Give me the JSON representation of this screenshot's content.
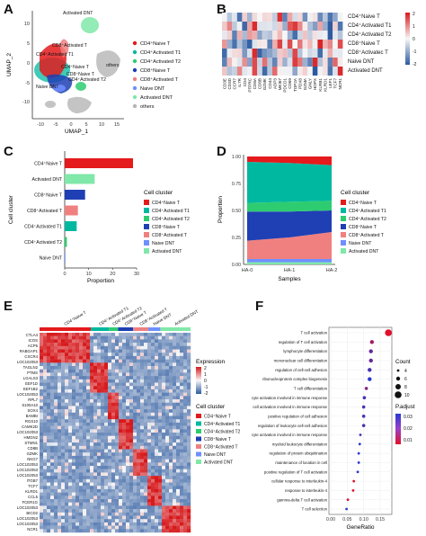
{
  "panel_labels": {
    "A": "A",
    "B": "B",
    "C": "C",
    "D": "D",
    "E": "E",
    "F": "F"
  },
  "colors": {
    "cd4_naive": "#e41a1c",
    "cd4_act1": "#00b8a0",
    "cd4_act2": "#2ecc71",
    "cd8_naive": "#1f3fb4",
    "cd8_act": "#f08080",
    "naive_dnt": "#6f8fff",
    "act_dnt": "#80e8a8",
    "others": "#b5b5b5"
  },
  "panelA": {
    "xlabel": "UMAP_1",
    "ylabel": "UMAP_2",
    "xticks": [
      "-10",
      "-5",
      "0",
      "5",
      "10",
      "15"
    ],
    "yticks": [
      "-10",
      "-5",
      "0",
      "5",
      "10"
    ],
    "cluster_labels": [
      "Activated DNT",
      "CD8⁺Activated T",
      "CD4⁺Activated T1",
      "CD4⁺Naive T",
      "CD8⁺Naive T",
      "others",
      "CD4⁺Activated T2",
      "Naive DNT"
    ],
    "legend": [
      "CD4⁺Naive T",
      "CD4⁺Activated T1",
      "CD4⁺Activated T2",
      "CD8⁺Naive T",
      "CD8⁺Activated T",
      "Naive DNT",
      "Activated DNT",
      "others"
    ]
  },
  "panelB": {
    "genes": [
      "CD3E",
      "CD3D",
      "CCR7",
      "IL7R",
      "CD4",
      "PTPRC",
      "CD8A",
      "CD8B",
      "GZMK",
      "CD44",
      "ADP3",
      "MKI67",
      "PDCD1",
      "CD69",
      "TOP2A",
      "PDX8",
      "GZMA",
      "GNLY",
      "HOPX",
      "KLRB1",
      "KLRD1",
      "LEF1",
      "TCF7",
      "NCR1"
    ],
    "rows": [
      "CD4⁺Naive T",
      "CD4⁺Activated T1",
      "CD4⁺Activated T2",
      "CD8⁺Naive T",
      "CD8⁺Activatec T",
      "Naive DNT",
      "Activated DNT"
    ],
    "scale": [
      "2",
      "1",
      "0",
      "-1",
      "-2"
    ]
  },
  "chart_data": [
    {
      "type": "bar",
      "panel": "C",
      "categories": [
        "CD4⁺Naive T",
        "Activated DNT",
        "CD8⁺Naive T",
        "CD8⁺Activated T",
        "CD4⁺Activated T1",
        "CD4⁺Activated T2",
        "Naive DNT"
      ],
      "values": [
        28.5,
        12.5,
        8.5,
        5.5,
        5.0,
        0.9,
        0.3
      ],
      "xlabel": "Proportion",
      "ylabel": "Cell cluster",
      "xlim": [
        0,
        30
      ],
      "xticks": [
        0,
        10,
        20,
        30
      ],
      "legend_title": "Cell cluster",
      "legend": [
        "CD4⁺Naive T",
        "CD4⁺Activated T1",
        "CD4⁺Activated T2",
        "CD8⁺Naive T",
        "CD8⁺Activated T",
        "Naive DNT",
        "Activated DNT"
      ]
    },
    {
      "type": "area",
      "panel": "D",
      "x": [
        "HA-0",
        "HA-1",
        "HA-2"
      ],
      "series": [
        {
          "name": "CD4⁺Naive T",
          "values": [
            0.05,
            0.06,
            0.08
          ]
        },
        {
          "name": "CD4⁺Activated T1",
          "values": [
            0.38,
            0.36,
            0.33
          ]
        },
        {
          "name": "CD4⁺Activated T2",
          "values": [
            0.08,
            0.09,
            0.09
          ]
        },
        {
          "name": "CD8⁺Naive T",
          "values": [
            0.27,
            0.24,
            0.2
          ]
        },
        {
          "name": "CD8⁺Activated T",
          "values": [
            0.17,
            0.2,
            0.25
          ]
        },
        {
          "name": "Naive DNT",
          "values": [
            0.03,
            0.03,
            0.03
          ]
        },
        {
          "name": "Activated DNT",
          "values": [
            0.02,
            0.02,
            0.02
          ]
        }
      ],
      "xlabel": "Samples",
      "ylabel": "Proportion",
      "ylim": [
        0,
        1
      ],
      "yticks": [
        "0.00",
        "0.25",
        "0.50",
        "0.75",
        "1.00"
      ],
      "legend_title": "Cell cluster"
    },
    {
      "type": "scatter",
      "panel": "F",
      "categories": [
        "T cell activation",
        "regulation of T cell activation",
        "lymphocyte differentiation",
        "mononuclear cell differentiation",
        "regulation of cell-cell adhesion",
        "ribonucleoprotein complex biogenesis",
        "T cell differentiation",
        "leukocyte activation involved in immune response",
        "cell activation involved in immune response",
        "positive regulation of cell adhesion",
        "regulation of leukocyte cell-cell adhesion",
        "lymphocyte activation involved in immune response",
        "myeloid leukocyte differentiation",
        "regulation of protein ubiquitination",
        "maintenance of location in cell",
        "positive regulation of T cell activation",
        "cellular response to interleukin-4",
        "response to interleukin-4",
        "gamma-delta T cell activation",
        "T cell selection"
      ],
      "values": [
        0.175,
        0.125,
        0.122,
        0.122,
        0.118,
        0.118,
        0.108,
        0.102,
        0.1,
        0.1,
        0.1,
        0.09,
        0.088,
        0.085,
        0.085,
        0.082,
        0.07,
        0.068,
        0.052,
        0.048
      ],
      "counts": [
        10,
        6,
        6,
        6,
        6,
        6,
        5,
        5,
        5,
        5,
        5,
        4,
        4,
        4,
        4,
        4,
        4,
        4,
        4,
        4
      ],
      "padj": [
        0.01,
        0.02,
        0.03,
        0.03,
        0.035,
        0.04,
        0.025,
        0.035,
        0.035,
        0.035,
        0.035,
        0.035,
        0.04,
        0.04,
        0.04,
        0.04,
        0.01,
        0.01,
        0.01,
        0.04
      ],
      "xlabel": "GeneRatio",
      "xlim": [
        0.0,
        0.18
      ],
      "xticks": [
        "0.00",
        "0.05",
        "0.10",
        "0.15"
      ],
      "legend_count_title": "Count",
      "legend_count_values": [
        "4",
        "6",
        "8",
        "10"
      ],
      "legend_padj_title": "P.adjust",
      "legend_padj_values": [
        "0.03",
        "0.02",
        "0.01"
      ]
    }
  ],
  "panelE": {
    "groups": [
      "CD4⁺Naive T",
      "CD4⁺Activated T1",
      "CD4⁺Activated T2",
      "CD8⁺Naive T",
      "CD8⁺Activated T",
      "Naive DNT",
      "Activated DNT"
    ],
    "gene_labels": [
      "CTLA4",
      "ICOS",
      "ACP5",
      "RABGAP1",
      "CXCR4",
      "LOC102053",
      "TAGLN2",
      "PTMS",
      "LGALS3",
      "EEF1D",
      "EEF1B2",
      "LOC102053",
      "RPL7",
      "S100A10",
      "SOX4",
      "BAMBI",
      "RGS10",
      "CAMK2D",
      "LOC102053",
      "HMGN2",
      "STMN1",
      "CD8B",
      "GZMK",
      "NKG7",
      "LOC102053",
      "LOC102053",
      "LOC102053",
      "ITGB7",
      "TCF7",
      "KLRD1",
      "CCL5",
      "FCER1G",
      "LOC102053",
      "BICD2",
      "LOC102053",
      "LOC102053",
      "NCR1"
    ],
    "expression_title": "Expression",
    "expression_scale": [
      "2",
      "1",
      "0",
      "-1",
      "-2"
    ],
    "legend_title": "Cell cluster"
  }
}
